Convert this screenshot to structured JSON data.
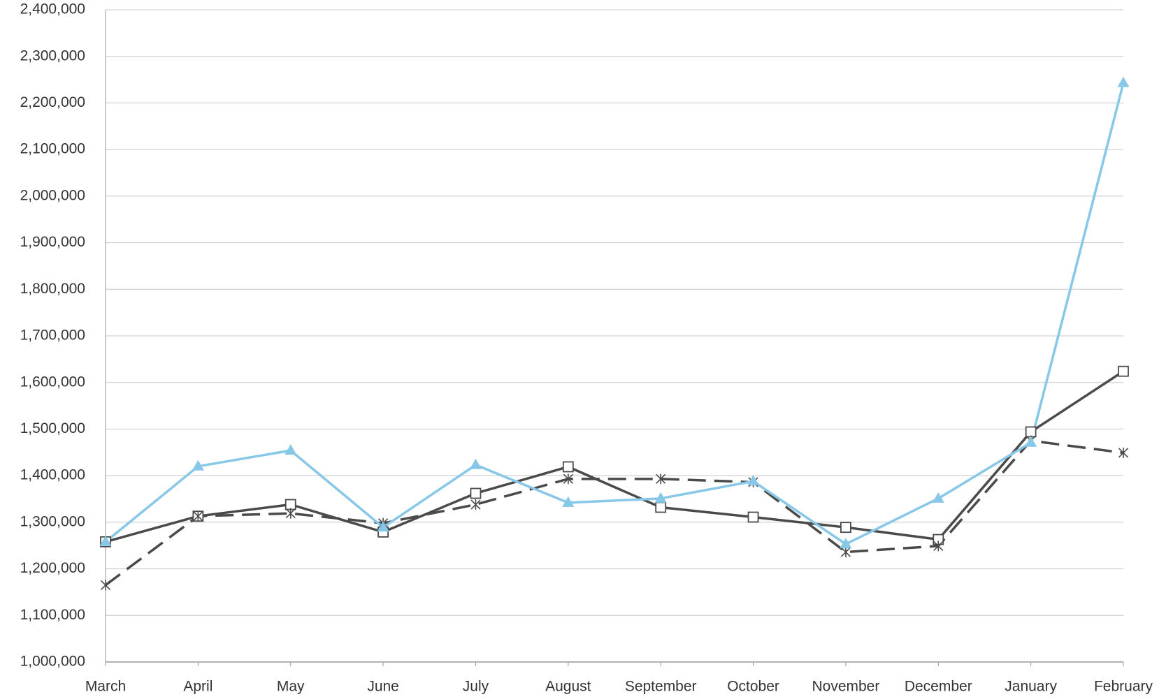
{
  "chart_data": {
    "type": "line",
    "categories": [
      "March",
      "April",
      "May",
      "June",
      "July",
      "August",
      "September",
      "October",
      "November",
      "December",
      "January",
      "February"
    ],
    "series": [
      {
        "color": "#4a4a4a",
        "line_style": "solid",
        "marker": "square",
        "values": [
          1258000,
          1313000,
          1338000,
          1279000,
          1362000,
          1419000,
          1332000,
          1311000,
          1289000,
          1263000,
          1494000,
          1624000
        ]
      },
      {
        "color": "#4a4a4a",
        "line_style": "dashed",
        "marker": "asterisk",
        "values": [
          1165000,
          1313000,
          1319000,
          1298000,
          1338000,
          1393000,
          1393000,
          1386000,
          1236000,
          1249000,
          1475000,
          1449000
        ]
      },
      {
        "color": "#87c8e8",
        "line_style": "solid",
        "marker": "triangle",
        "values": [
          1258000,
          1420000,
          1454000,
          1289000,
          1423000,
          1342000,
          1351000,
          1388000,
          1253000,
          1351000,
          1471000,
          2243000
        ]
      }
    ],
    "ylim": [
      1000000,
      2400000
    ],
    "yticks": [
      {
        "value": 1000000,
        "label": "1,000,000"
      },
      {
        "value": 1100000,
        "label": "1,100,000"
      },
      {
        "value": 1200000,
        "label": "1,200,000"
      },
      {
        "value": 1300000,
        "label": "1,300,000"
      },
      {
        "value": 1400000,
        "label": "1,400,000"
      },
      {
        "value": 1500000,
        "label": "1,500,000"
      },
      {
        "value": 1600000,
        "label": "1,600,000"
      },
      {
        "value": 1700000,
        "label": "1,700,000"
      },
      {
        "value": 1800000,
        "label": "1,800,000"
      },
      {
        "value": 1900000,
        "label": "1,900,000"
      },
      {
        "value": 2000000,
        "label": "2,000,000"
      },
      {
        "value": 2100000,
        "label": "2,100,000"
      },
      {
        "value": 2200000,
        "label": "2,200,000"
      },
      {
        "value": 2300000,
        "label": "2,300,000"
      },
      {
        "value": 2400000,
        "label": "2,400,000"
      }
    ],
    "grid": true
  }
}
